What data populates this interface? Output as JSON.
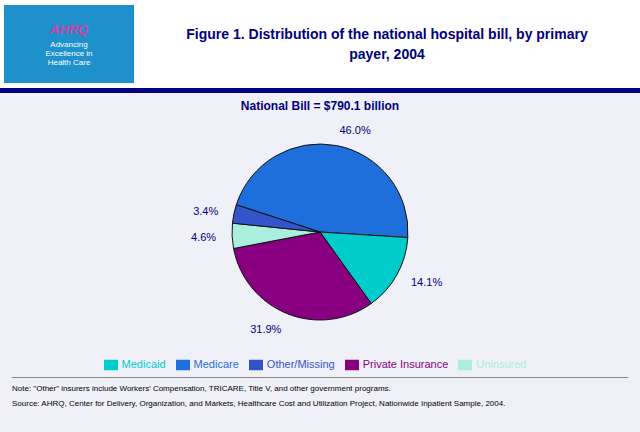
{
  "chart_data": {
    "type": "pie",
    "title": "Figure 1. Distribution of the national hospital bill, by primary payer, 2004",
    "subtitle": "National Bill = $790.1 billion",
    "categories": [
      "Medicare",
      "Medicaid",
      "Private Insurance",
      "Uninsured",
      "Other/Missing"
    ],
    "values": [
      46.0,
      14.1,
      31.9,
      4.6,
      3.4
    ],
    "value_labels": [
      "46.0%",
      "14.1%",
      "31.9%",
      "4.6%",
      "3.4%"
    ],
    "colors": [
      "#1e6fdc",
      "#00cccc",
      "#880080",
      "#aaeedd",
      "#3355cc"
    ],
    "data_labels": true,
    "legend": "bottom",
    "annotations": [
      "AHRQ",
      "Advancing Excellence in Health Care",
      "Note: \"Other\" insurers include Workers' Compensation, TRICARE, Title V, and other government programs.",
      "Source: AHRQ, Center for Delivery, Organization, and Markets, Healthcare Cost and Utilization Project, Nationwide Inpatient Sample, 2004."
    ]
  }
}
